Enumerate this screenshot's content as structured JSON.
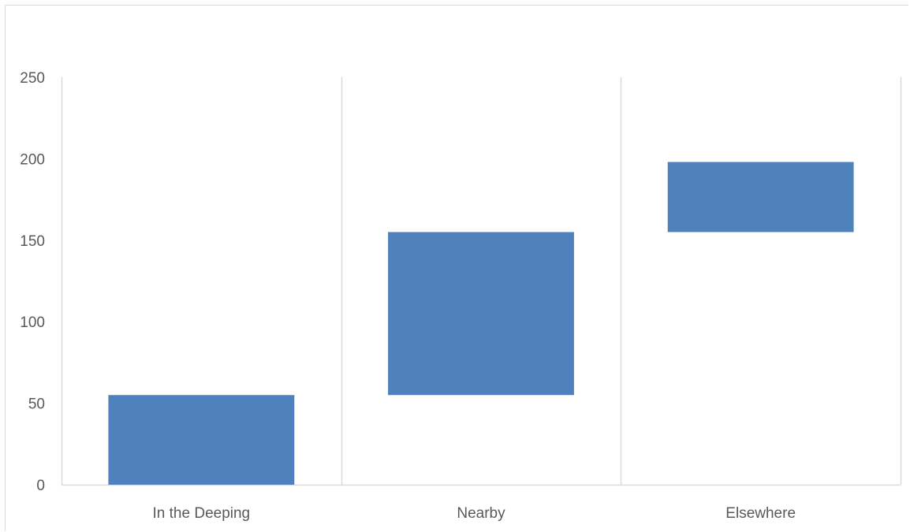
{
  "chart_data": {
    "type": "bar",
    "subtype": "floating-waterfall",
    "title": "",
    "xlabel": "",
    "ylabel": "",
    "categories": [
      "In the Deeping",
      "Nearby",
      "Elsewhere"
    ],
    "series": [
      {
        "ranges": [
          [
            0,
            55
          ],
          [
            55,
            155
          ],
          [
            155,
            198
          ]
        ],
        "values": [
          55,
          100,
          43
        ]
      }
    ],
    "ylim": [
      0,
      250
    ],
    "yticks": [
      0,
      50,
      100,
      150,
      200,
      250
    ],
    "grid": {
      "vertical_category_separators": true,
      "horizontal": false
    },
    "legend": "none",
    "colors": {
      "bar": "#4f81bd",
      "grid": "#d9d9d9",
      "tick_text": "#595959",
      "frame": "#d9d9d9"
    }
  }
}
